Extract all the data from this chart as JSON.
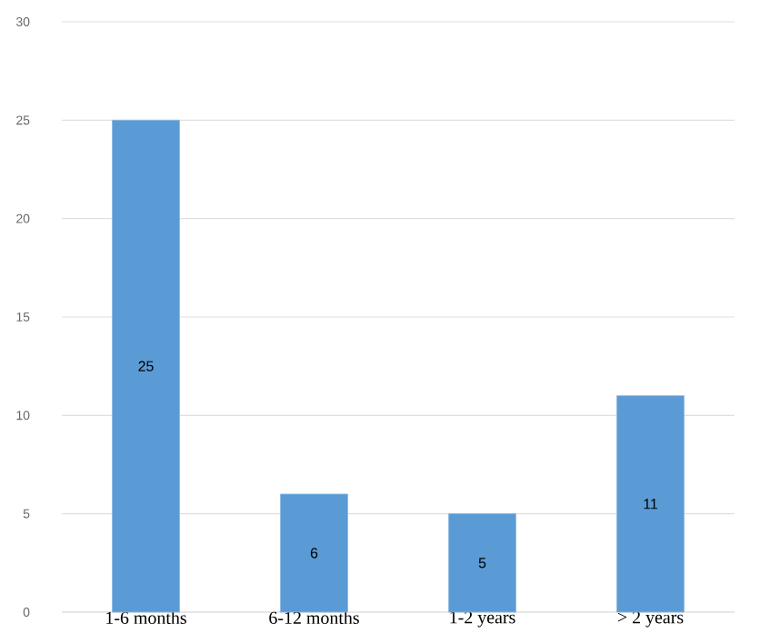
{
  "chart_data": {
    "type": "bar",
    "categories": [
      "1-6 months",
      "6-12 months",
      "1-2 years",
      "> 2 years"
    ],
    "values": [
      25,
      6,
      5,
      11
    ],
    "color": "#5b9bd5",
    "ylim": [
      0,
      30
    ],
    "yticks": [
      0,
      5,
      10,
      15,
      20,
      25,
      30
    ],
    "grid": "y",
    "data_labels": true
  }
}
